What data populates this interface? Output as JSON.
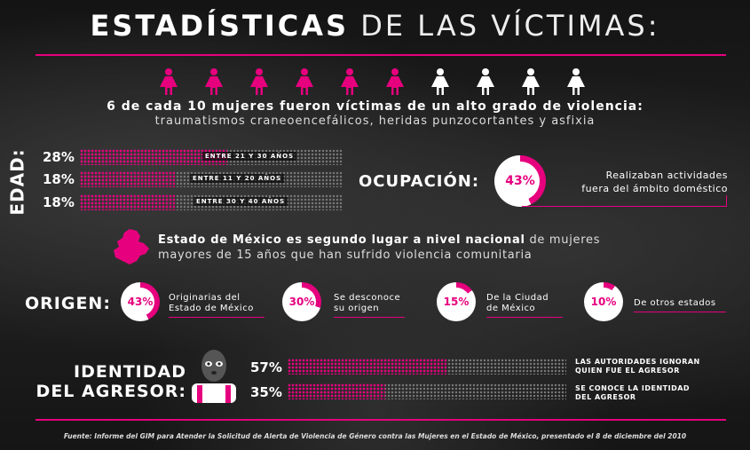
{
  "title": {
    "bold": "ESTADÍSTICAS",
    "light": "DE LAS VÍCTIMAS:"
  },
  "victims": {
    "total": 10,
    "affected": 6,
    "headline": "6 de cada 10 mujeres fueron víctimas de un alto grado de violencia:",
    "detail": "traumatismos craneoencefálicos, heridas punzocortantes y asfixia",
    "colors": {
      "affected": "#e6007e",
      "other": "#ffffff"
    }
  },
  "edad": {
    "label": "EDAD:",
    "rows": [
      {
        "pct": "28%",
        "value": 28,
        "label": "ENTRE 21 Y 30 AÑOS"
      },
      {
        "pct": "18%",
        "value": 18,
        "label": "ENTRE 11 Y 20 AÑOS"
      },
      {
        "pct": "18%",
        "value": 18,
        "label": "ENTRE 30 Y 40 AÑOS"
      }
    ]
  },
  "ocupacion": {
    "label": "OCUPACIÓN:",
    "pct": "43%",
    "value": 43,
    "line1": "Realizaban actividades",
    "line2": "fuera del ámbito doméstico"
  },
  "estado": {
    "bold": "Estado de México es segundo lugar a nivel nacional",
    "rest1": " de mujeres",
    "line2": "mayores de 15 años que han sufrido violencia comunitaria"
  },
  "origen": {
    "label": "ORIGEN:",
    "items": [
      {
        "pct": "43%",
        "value": 43,
        "line1": "Originarias del",
        "line2": "Estado de México"
      },
      {
        "pct": "30%",
        "value": 30,
        "line1": "Se desconoce",
        "line2": "su origen"
      },
      {
        "pct": "15%",
        "value": 15,
        "line1": "De la Ciudad",
        "line2": "de México"
      },
      {
        "pct": "10%",
        "value": 10,
        "line1": "De otros estados",
        "line2": ""
      }
    ]
  },
  "agresor": {
    "label1": "IDENTIDAD",
    "label2": "DEL AGRESOR:",
    "rows": [
      {
        "pct": "57%",
        "value": 57,
        "line1": "LAS AUTORIDADES IGNORAN",
        "line2": "QUIEN FUE EL AGRESOR"
      },
      {
        "pct": "35%",
        "value": 35,
        "line1": "SE CONOCE LA IDENTIDAD",
        "line2": "DEL AGRESOR"
      }
    ]
  },
  "footer": "Fuente: Informe del GIM para Atender la Solicitud de Alerta de Violencia de Género contra las Mujeres en el Estado de México, presentado el 8 de diciembre del 2010",
  "accent": "#e6007e",
  "bar_track": "#777777"
}
